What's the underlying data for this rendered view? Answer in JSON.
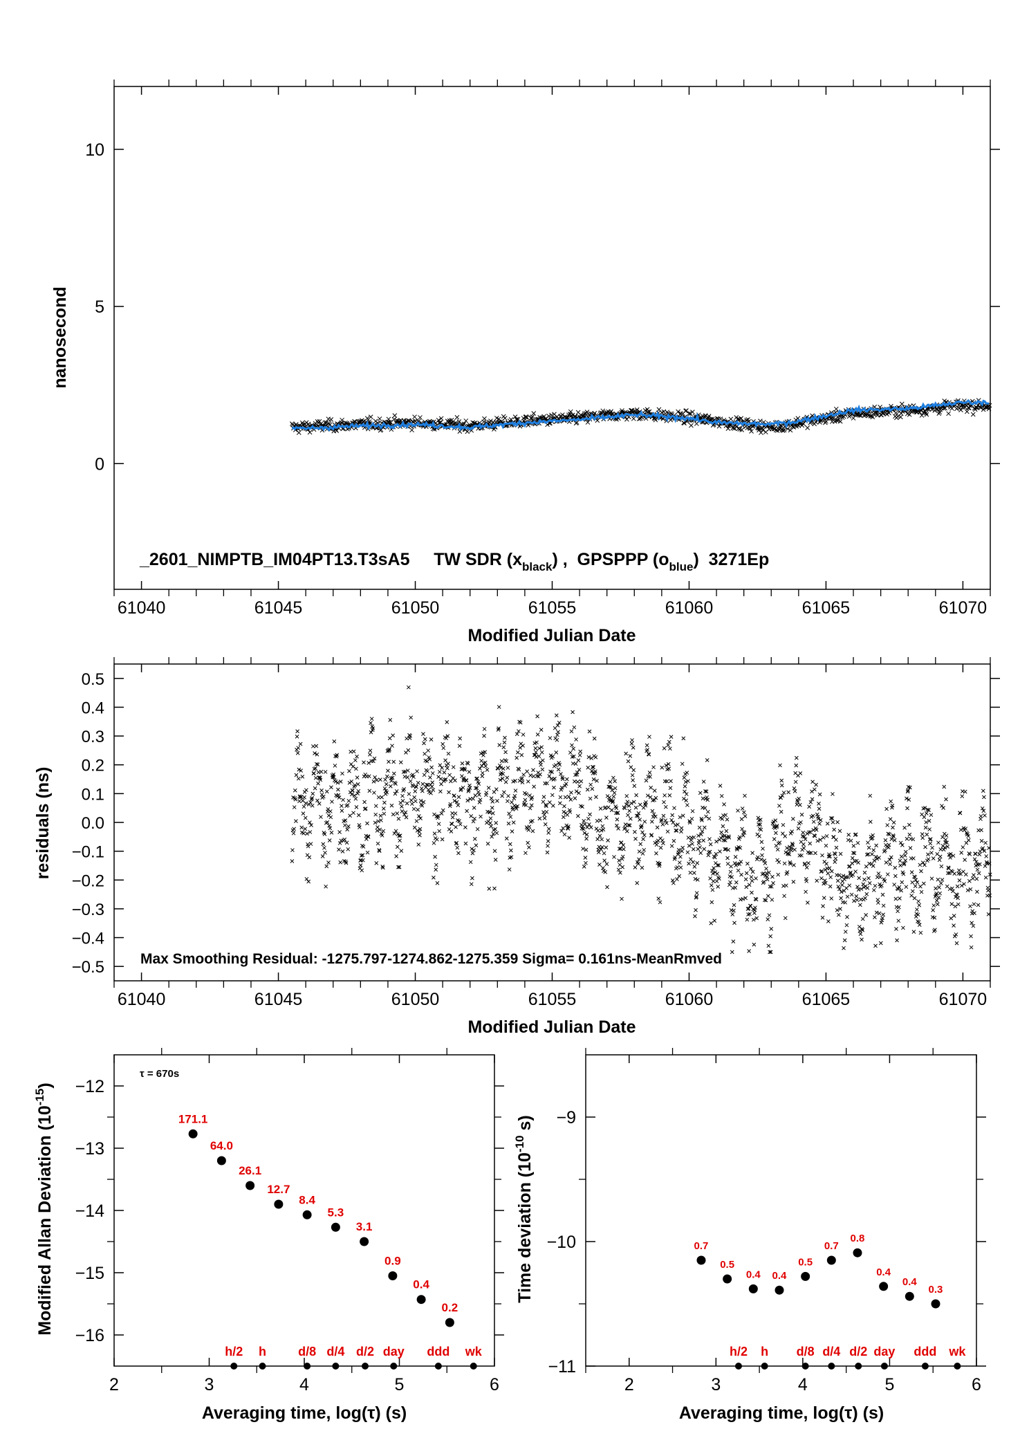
{
  "chart_data": [
    {
      "id": "phase",
      "type": "scatter",
      "ylabel": "nanosecond",
      "xlabel": "Modified Julian Date",
      "xlim": [
        61039.0,
        71.0
      ],
      "xlim_note": "",
      "x_range": [
        61039.0,
        61071.0
      ],
      "y_range": [
        -4.0,
        12.0
      ],
      "x_ticks": [
        61040,
        61045,
        61050,
        61055,
        61060,
        61065,
        61070
      ],
      "y_ticks": [
        0,
        5,
        10
      ],
      "annotation": {
        "prefix": "_2601_NIMPTB_IM04PT13.T3sA5     TW SDR (x",
        "sub1": "black",
        "mid": ") ,  GPSPPP (o",
        "sub2": "blue",
        "suffix": ")  3271Ep"
      },
      "series": [
        {
          "name": "TW SDR",
          "marker": "x",
          "color": "#000000",
          "trend": [
            [
              61045.5,
              1.15
            ],
            [
              61048,
              1.25
            ],
            [
              61050,
              1.3
            ],
            [
              61052,
              1.2
            ],
            [
              61054,
              1.35
            ],
            [
              61056,
              1.45
            ],
            [
              61058,
              1.6
            ],
            [
              61060,
              1.45
            ],
            [
              61061,
              1.35
            ],
            [
              61063,
              1.15
            ],
            [
              61064,
              1.3
            ],
            [
              61066,
              1.6
            ],
            [
              61068,
              1.7
            ],
            [
              61070,
              1.85
            ],
            [
              61071,
              1.85
            ]
          ]
        },
        {
          "name": "GPSPPP",
          "marker": "o",
          "color": "#1f7fe0",
          "trend": [
            [
              61045.5,
              1.1
            ],
            [
              61048,
              1.2
            ],
            [
              61050,
              1.25
            ],
            [
              61052,
              1.15
            ],
            [
              61054,
              1.3
            ],
            [
              61056,
              1.4
            ],
            [
              61058,
              1.55
            ],
            [
              61060,
              1.45
            ],
            [
              61061,
              1.3
            ],
            [
              61063,
              1.25
            ],
            [
              61064,
              1.35
            ],
            [
              61066,
              1.7
            ],
            [
              61068,
              1.75
            ],
            [
              61070,
              1.95
            ],
            [
              61071,
              1.95
            ]
          ]
        }
      ]
    },
    {
      "id": "residuals",
      "type": "scatter",
      "ylabel": "residuals (ns)",
      "xlabel": "Modified Julian Date",
      "x_range": [
        61039.0,
        61071.0
      ],
      "y_range": [
        -0.55,
        0.55
      ],
      "x_ticks": [
        61040,
        61045,
        61050,
        61055,
        61060,
        61065,
        61070
      ],
      "y_ticks": [
        0.5,
        0.4,
        0.3,
        0.2,
        0.1,
        0.0,
        -0.1,
        -0.2,
        -0.3,
        -0.4,
        -0.5
      ],
      "y_tick_labels": [
        "0.5",
        "0.4",
        "0.3",
        "0.2",
        "0.1",
        "0.0",
        "−0.1",
        "−0.2",
        "−0.3",
        "−0.4",
        "−0.5"
      ],
      "annotation": "Max Smoothing Residual: -1275.797-1274.862-1275.359  Sigma= 0.161ns-MeanRmved",
      "series": [
        {
          "name": "",
          "marker": "x",
          "color": "#000000",
          "x_start": 61045.5,
          "x_end": 61071.0,
          "sigma": 0.161,
          "center": [
            [
              61045.5,
              0.05
            ],
            [
              61048,
              0.05
            ],
            [
              61050,
              0.12
            ],
            [
              61052,
              0.08
            ],
            [
              61055,
              0.15
            ],
            [
              61057,
              0.0
            ],
            [
              61059,
              0.05
            ],
            [
              61061,
              -0.1
            ],
            [
              61062.5,
              -0.2
            ],
            [
              61064,
              0.0
            ],
            [
              61066,
              -0.2
            ],
            [
              61068,
              -0.15
            ],
            [
              61071,
              -0.15
            ]
          ]
        }
      ]
    },
    {
      "id": "mdev",
      "type": "scatter",
      "ylabel": "Modified Allan Deviation (10",
      "ylabel_sup": "-15",
      "ylabel_end": ")",
      "xlabel": "Averaging time, log(τ) (s)",
      "x_range": [
        2,
        6
      ],
      "y_range": [
        -16.5,
        -11.5
      ],
      "x_ticks": [
        2,
        3,
        4,
        5,
        6
      ],
      "y_ticks": [
        -12,
        -13,
        -14,
        -15,
        -16
      ],
      "y_tick_labels": [
        "−12",
        "−13",
        "−14",
        "−15",
        "−16"
      ],
      "tau_note": "τ = 670s",
      "points": [
        {
          "x": 2.83,
          "y": -12.77,
          "label": "171.1"
        },
        {
          "x": 3.13,
          "y": -13.2,
          "label": "64.0"
        },
        {
          "x": 3.43,
          "y": -13.6,
          "label": "26.1"
        },
        {
          "x": 3.73,
          "y": -13.9,
          "label": "12.7"
        },
        {
          "x": 4.03,
          "y": -14.07,
          "label": "8.4"
        },
        {
          "x": 4.33,
          "y": -14.27,
          "label": "5.3"
        },
        {
          "x": 4.63,
          "y": -14.5,
          "label": "3.1"
        },
        {
          "x": 4.93,
          "y": -15.05,
          "label": "0.9"
        },
        {
          "x": 5.23,
          "y": -15.43,
          "label": "0.4"
        },
        {
          "x": 5.53,
          "y": -15.8,
          "label": "0.2"
        }
      ],
      "period_markers": [
        {
          "x": 3.26,
          "label": "h/2"
        },
        {
          "x": 3.56,
          "label": "h"
        },
        {
          "x": 4.03,
          "label": "d/8"
        },
        {
          "x": 4.33,
          "label": "d/4"
        },
        {
          "x": 4.64,
          "label": "d/2"
        },
        {
          "x": 4.94,
          "label": "day"
        },
        {
          "x": 5.41,
          "label": "ddd"
        },
        {
          "x": 5.78,
          "label": "wk"
        }
      ]
    },
    {
      "id": "tdev",
      "type": "scatter",
      "ylabel": "Time deviation (10",
      "ylabel_sup": "-10",
      "ylabel_end": " s)",
      "xlabel": "Averaging time, log(τ) (s)",
      "x_range": [
        1.5,
        6.0
      ],
      "y_range": [
        -11.0,
        -8.5
      ],
      "x_ticks": [
        2,
        3,
        4,
        5,
        6
      ],
      "y_ticks": [
        -9,
        -10,
        -11
      ],
      "y_tick_labels": [
        "−9",
        "−10",
        "−11"
      ],
      "points": [
        {
          "x": 2.83,
          "y": -10.15,
          "label": "0.7"
        },
        {
          "x": 3.13,
          "y": -10.3,
          "label": "0.5"
        },
        {
          "x": 3.43,
          "y": -10.38,
          "label": "0.4"
        },
        {
          "x": 3.73,
          "y": -10.39,
          "label": "0.4"
        },
        {
          "x": 4.03,
          "y": -10.28,
          "label": "0.5"
        },
        {
          "x": 4.33,
          "y": -10.15,
          "label": "0.7"
        },
        {
          "x": 4.63,
          "y": -10.09,
          "label": "0.8"
        },
        {
          "x": 4.93,
          "y": -10.36,
          "label": "0.4"
        },
        {
          "x": 5.23,
          "y": -10.44,
          "label": "0.4"
        },
        {
          "x": 5.53,
          "y": -10.5,
          "label": "0.3"
        }
      ],
      "period_markers": [
        {
          "x": 3.26,
          "label": "h/2"
        },
        {
          "x": 3.56,
          "label": "h"
        },
        {
          "x": 4.03,
          "label": "d/8"
        },
        {
          "x": 4.33,
          "label": "d/4"
        },
        {
          "x": 4.64,
          "label": "d/2"
        },
        {
          "x": 4.94,
          "label": "day"
        },
        {
          "x": 5.41,
          "label": "ddd"
        },
        {
          "x": 5.78,
          "label": "wk"
        }
      ]
    }
  ],
  "colors": {
    "axis": "#000000",
    "points": "#000000",
    "labels": "#e00000",
    "ppp": "#1f7fe0"
  }
}
